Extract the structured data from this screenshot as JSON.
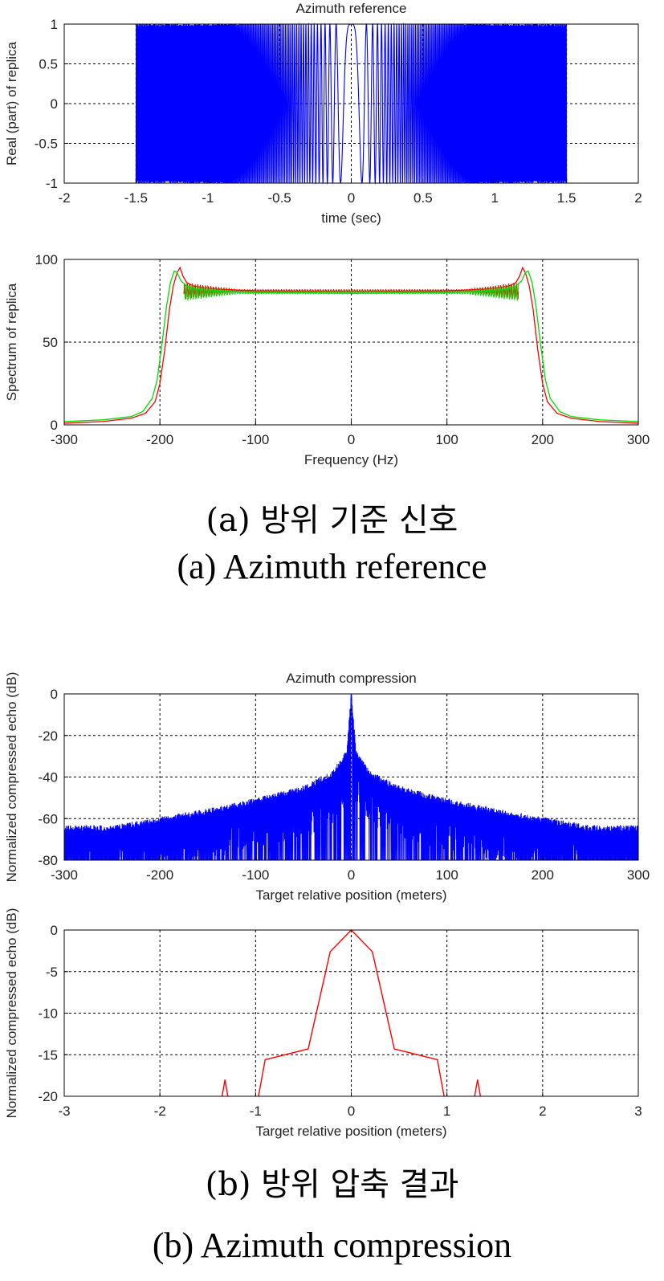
{
  "captions": {
    "a_ko": "(a) 방위 기준 신호",
    "a_en": "(a) Azimuth reference",
    "b_ko": "(b) 방위 압축 결과",
    "b_en": "(b) Azimuth compression"
  },
  "colors": {
    "blue": "#0000ff",
    "red": "#ff0000",
    "green": "#00dd00",
    "grid": "#000000"
  },
  "chart_data": [
    {
      "id": "ref_time",
      "type": "line",
      "title": "Azimuth reference",
      "xlabel": "time (sec)",
      "ylabel": "Real (part) of replica",
      "xlim": [
        -2,
        2
      ],
      "ylim": [
        -1,
        1
      ],
      "xticks": [
        -2,
        -1.5,
        -1,
        -0.5,
        0,
        0.5,
        1,
        1.5,
        2
      ],
      "yticks": [
        -1,
        -0.5,
        0,
        0.5,
        1
      ],
      "grid": true,
      "series": [
        {
          "color": "blue",
          "kind": "chirp",
          "t_range": [
            -1.5,
            1.5
          ],
          "amplitude": 1
        }
      ]
    },
    {
      "id": "ref_spectrum",
      "type": "line",
      "title": "",
      "xlabel": "Frequency (Hz)",
      "ylabel": "Spectrum of replica",
      "xlim": [
        -300,
        300
      ],
      "ylim": [
        0,
        100
      ],
      "xticks": [
        -300,
        -200,
        -100,
        0,
        100,
        200,
        300
      ],
      "yticks": [
        0,
        50,
        100
      ],
      "grid": true,
      "series": [
        {
          "color": "red",
          "points": [
            [
              -300,
              1
            ],
            [
              -260,
              2
            ],
            [
              -230,
              4
            ],
            [
              -215,
              7
            ],
            [
              -205,
              14
            ],
            [
              -200,
              25
            ],
            [
              -195,
              45
            ],
            [
              -190,
              70
            ],
            [
              -186,
              84
            ],
            [
              -182,
              92
            ],
            [
              -179,
              95
            ],
            [
              -176,
              90
            ],
            [
              -172,
              86
            ],
            [
              -165,
              84
            ],
            [
              -155,
              83
            ],
            [
              -140,
              82
            ],
            [
              -100,
              81
            ],
            [
              0,
              80.5
            ],
            [
              100,
              81
            ],
            [
              140,
              82
            ],
            [
              155,
              83
            ],
            [
              165,
              84
            ],
            [
              172,
              86
            ],
            [
              176,
              90
            ],
            [
              179,
              95
            ],
            [
              182,
              92
            ],
            [
              186,
              84
            ],
            [
              190,
              70
            ],
            [
              195,
              45
            ],
            [
              200,
              25
            ],
            [
              205,
              14
            ],
            [
              215,
              7
            ],
            [
              230,
              4
            ],
            [
              260,
              2
            ],
            [
              300,
              1
            ]
          ]
        },
        {
          "color": "green",
          "points": [
            [
              -300,
              2
            ],
            [
              -260,
              3
            ],
            [
              -230,
              5
            ],
            [
              -218,
              8
            ],
            [
              -208,
              16
            ],
            [
              -203,
              27
            ],
            [
              -198,
              48
            ],
            [
              -193,
              72
            ],
            [
              -189,
              86
            ],
            [
              -185,
              93
            ],
            [
              -182,
              92
            ],
            [
              -178,
              87
            ],
            [
              -172,
              84
            ],
            [
              -162,
              82
            ],
            [
              -150,
              81
            ],
            [
              -100,
              80
            ],
            [
              0,
              79.5
            ],
            [
              100,
              80
            ],
            [
              150,
              81
            ],
            [
              162,
              82
            ],
            [
              172,
              84
            ],
            [
              178,
              87
            ],
            [
              182,
              92
            ],
            [
              185,
              93
            ],
            [
              189,
              86
            ],
            [
              193,
              72
            ],
            [
              198,
              48
            ],
            [
              203,
              27
            ],
            [
              208,
              16
            ],
            [
              218,
              8
            ],
            [
              230,
              5
            ],
            [
              260,
              3
            ],
            [
              300,
              2
            ]
          ]
        }
      ]
    },
    {
      "id": "comp_full",
      "type": "line",
      "title": "Azimuth compression",
      "xlabel": "Target relative position (meters)",
      "ylabel": "Normalized compressed echo (dB)",
      "xlim": [
        -300,
        300
      ],
      "ylim": [
        -80,
        0
      ],
      "xticks": [
        -300,
        -200,
        -100,
        0,
        100,
        200,
        300
      ],
      "yticks": [
        -80,
        -60,
        -40,
        -20,
        0
      ],
      "grid": true,
      "series": [
        {
          "color": "blue",
          "kind": "sidelobes",
          "peak": 0,
          "envelope": [
            [
              -300,
              -64
            ],
            [
              -250,
              -64
            ],
            [
              -200,
              -60
            ],
            [
              -150,
              -56
            ],
            [
              -100,
              -51
            ],
            [
              -50,
              -45
            ],
            [
              -20,
              -38
            ],
            [
              -5,
              -28
            ],
            [
              0,
              0
            ],
            [
              5,
              -28
            ],
            [
              20,
              -38
            ],
            [
              50,
              -45
            ],
            [
              100,
              -51
            ],
            [
              150,
              -56
            ],
            [
              200,
              -60
            ],
            [
              250,
              -64
            ],
            [
              300,
              -64
            ]
          ]
        }
      ]
    },
    {
      "id": "comp_zoom",
      "type": "line",
      "title": "",
      "xlabel": "Target relative position (meters)",
      "ylabel": "Normalized compressed echo (dB)",
      "xlim": [
        -3,
        3
      ],
      "ylim": [
        -20,
        0
      ],
      "xticks": [
        -3,
        -2,
        -1,
        0,
        1,
        2,
        3
      ],
      "yticks": [
        -20,
        -15,
        -10,
        -5,
        0
      ],
      "grid": true,
      "series": [
        {
          "color": "red",
          "segments": [
            [
              [
                -1.35,
                -20
              ],
              [
                -1.32,
                -18
              ],
              [
                -1.29,
                -20
              ]
            ],
            [
              [
                -0.97,
                -20
              ],
              [
                -0.9,
                -15.6
              ],
              [
                -0.45,
                -14.3
              ],
              [
                -0.22,
                -2.6
              ],
              [
                0,
                0
              ],
              [
                0.22,
                -2.6
              ],
              [
                0.45,
                -14.3
              ],
              [
                0.9,
                -15.6
              ],
              [
                0.97,
                -20
              ]
            ],
            [
              [
                1.29,
                -20
              ],
              [
                1.32,
                -18
              ],
              [
                1.35,
                -20
              ]
            ]
          ]
        }
      ]
    }
  ]
}
